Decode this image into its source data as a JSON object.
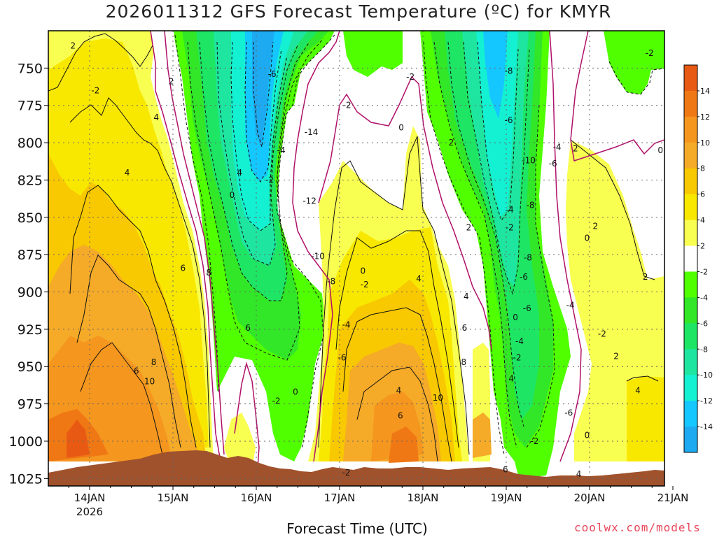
{
  "chart_data": {
    "type": "heatmap",
    "title": "2026011312 GFS Forecast Temperature (ºC) for KMYR",
    "xlabel": "Forecast Time (UTC)",
    "ylabel": "",
    "y_axis": {
      "ticks": [
        "750",
        "775",
        "800",
        "825",
        "850",
        "875",
        "900",
        "925",
        "950",
        "975",
        "1000",
        "1025"
      ],
      "range": [
        1030,
        725
      ],
      "inverted": true
    },
    "x_axis": {
      "ticks": [
        "14JAN",
        "15JAN",
        "16JAN",
        "17JAN",
        "18JAN",
        "19JAN",
        "20JAN",
        "21JAN"
      ],
      "year_label": "2026",
      "range": [
        "13JAN 12Z",
        "21JAN 00Z"
      ]
    },
    "grid": true,
    "colorbar": {
      "labels": [
        "14",
        "12",
        "10",
        "8",
        "6",
        "4",
        "2",
        "-2",
        "-4",
        "-6",
        "-8",
        "-10",
        "-12",
        "-14"
      ],
      "colors": [
        "#e85a14",
        "#f07814",
        "#f5961e",
        "#f5aa28",
        "#f8c800",
        "#f8e800",
        "#f8ff50",
        "#ffffff",
        "#50ff00",
        "#32e628",
        "#1ee664",
        "#1ee6a0",
        "#14f0d2",
        "#14c8ff",
        "#1eaaf0"
      ]
    },
    "contour_labels": [
      {
        "t": 0.3,
        "p": 735,
        "v": "2"
      },
      {
        "t": 0.57,
        "p": 765,
        "v": "-2"
      },
      {
        "t": 0.95,
        "p": 820,
        "v": "4"
      },
      {
        "t": 1.3,
        "p": 783,
        "v": "4"
      },
      {
        "t": 1.62,
        "p": 884,
        "v": "6"
      },
      {
        "t": 1.93,
        "p": 887,
        "v": "8"
      },
      {
        "t": 1.22,
        "p": 960,
        "v": "10"
      },
      {
        "t": 1.27,
        "p": 947,
        "v": "8"
      },
      {
        "t": 1.06,
        "p": 953,
        "v": "6"
      },
      {
        "t": 2.21,
        "p": 835,
        "v": "0"
      },
      {
        "t": 2.3,
        "p": 820,
        "v": "4"
      },
      {
        "t": 2.4,
        "p": 924,
        "v": "6"
      },
      {
        "t": 1.48,
        "p": 759,
        "v": "2"
      },
      {
        "t": 2.69,
        "p": 754,
        "v": "-6"
      },
      {
        "t": 2.66,
        "p": 825,
        "v": "-2"
      },
      {
        "t": 2.8,
        "p": 805,
        "v": "-4"
      },
      {
        "t": 3.16,
        "p": 793,
        "v": "-14"
      },
      {
        "t": 3.14,
        "p": 839,
        "v": "-12"
      },
      {
        "t": 3.24,
        "p": 876,
        "v": "-10"
      },
      {
        "t": 3.4,
        "p": 893,
        "v": "-8"
      },
      {
        "t": 3.58,
        "p": 922,
        "v": "-4"
      },
      {
        "t": 3.53,
        "p": 944,
        "v": "-6"
      },
      {
        "t": 3.59,
        "p": 775,
        "v": "-2"
      },
      {
        "t": 3.78,
        "p": 886,
        "v": "0"
      },
      {
        "t": 3.8,
        "p": 895,
        "v": "-2"
      },
      {
        "t": 2.74,
        "p": 973,
        "v": "-2"
      },
      {
        "t": 2.97,
        "p": 967,
        "v": "0"
      },
      {
        "t": 3.58,
        "p": 1021,
        "v": "-2"
      },
      {
        "t": 4.24,
        "p": 790,
        "v": "0"
      },
      {
        "t": 4.35,
        "p": 756,
        "v": "-2"
      },
      {
        "t": 4.21,
        "p": 966,
        "v": "4"
      },
      {
        "t": 4.23,
        "p": 983,
        "v": "6"
      },
      {
        "t": 4.45,
        "p": 891,
        "v": "4"
      },
      {
        "t": 4.84,
        "p": 800,
        "v": "2"
      },
      {
        "t": 5.05,
        "p": 857,
        "v": "2"
      },
      {
        "t": 5.02,
        "p": 903,
        "v": "4"
      },
      {
        "t": 5.0,
        "p": 924,
        "v": "6"
      },
      {
        "t": 4.99,
        "p": 947,
        "v": "8"
      },
      {
        "t": 4.68,
        "p": 971,
        "v": "10"
      },
      {
        "t": 5.49,
        "p": 1019,
        "v": "6"
      },
      {
        "t": 5.54,
        "p": 845,
        "v": "-4"
      },
      {
        "t": 5.54,
        "p": 857,
        "v": "-2"
      },
      {
        "t": 5.53,
        "p": 752,
        "v": "-8"
      },
      {
        "t": 5.53,
        "p": 785,
        "v": "-6"
      },
      {
        "t": 5.77,
        "p": 812,
        "v": "-10"
      },
      {
        "t": 5.79,
        "p": 842,
        "v": "-8"
      },
      {
        "t": 5.76,
        "p": 877,
        "v": "-8"
      },
      {
        "t": 5.71,
        "p": 890,
        "v": "-6"
      },
      {
        "t": 5.61,
        "p": 917,
        "v": "0"
      },
      {
        "t": 5.75,
        "p": 911,
        "v": "-6"
      },
      {
        "t": 5.66,
        "p": 933,
        "v": "-4"
      },
      {
        "t": 5.63,
        "p": 944,
        "v": "-2"
      },
      {
        "t": 5.56,
        "p": 958,
        "v": "4"
      },
      {
        "t": 5.84,
        "p": 1000,
        "v": "-2"
      },
      {
        "t": 6.11,
        "p": 803,
        "v": "-4"
      },
      {
        "t": 6.06,
        "p": 814,
        "v": "-6"
      },
      {
        "t": 6.33,
        "p": 804,
        "v": "2"
      },
      {
        "t": 6.27,
        "p": 909,
        "v": "-4"
      },
      {
        "t": 6.25,
        "p": 981,
        "v": "-6"
      },
      {
        "t": 6.47,
        "p": 864,
        "v": "0"
      },
      {
        "t": 6.57,
        "p": 856,
        "v": "2"
      },
      {
        "t": 6.65,
        "p": 928,
        "v": "-2"
      },
      {
        "t": 6.47,
        "p": 996,
        "v": "0"
      },
      {
        "t": 6.37,
        "p": 1022,
        "v": "4"
      },
      {
        "t": 6.82,
        "p": 943,
        "v": "2"
      },
      {
        "t": 7.08,
        "p": 966,
        "v": "4"
      },
      {
        "t": 7.17,
        "p": 890,
        "v": "2"
      },
      {
        "t": 7.35,
        "p": 805,
        "v": "0"
      },
      {
        "t": 7.22,
        "p": 740,
        "v": "-2"
      }
    ]
  }
}
